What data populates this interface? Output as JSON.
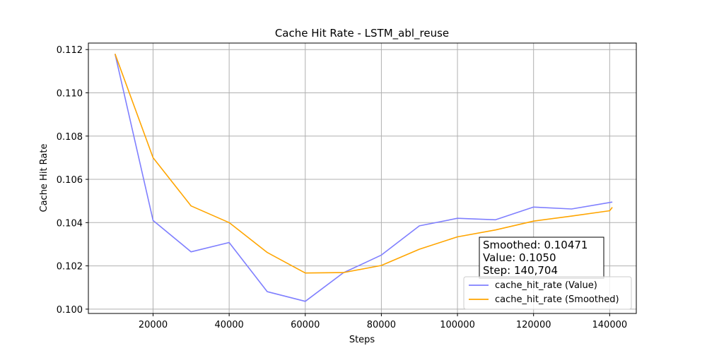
{
  "chart_data": {
    "type": "line",
    "title": "Cache Hit Rate - LSTM_abl_reuse",
    "xlabel": "Steps",
    "ylabel": "Cache Hit Rate",
    "xlim": [
      3000,
      147000
    ],
    "ylim": [
      0.0998,
      0.1123
    ],
    "x_ticks": [
      20000,
      40000,
      60000,
      80000,
      100000,
      120000,
      140000
    ],
    "x_tick_labels": [
      "20000",
      "40000",
      "60000",
      "80000",
      "100000",
      "120000",
      "140000"
    ],
    "y_ticks": [
      0.1,
      0.102,
      0.104,
      0.106,
      0.108,
      0.11,
      0.112
    ],
    "y_tick_labels": [
      "0.100",
      "0.102",
      "0.104",
      "0.106",
      "0.108",
      "0.110",
      "0.112"
    ],
    "grid": true,
    "legend_position": "bottom-right",
    "series": [
      {
        "name": "cache_hit_rate (Value)",
        "color": "#7f7fff",
        "x": [
          10000,
          20000,
          30000,
          40000,
          50000,
          60000,
          70000,
          80000,
          90000,
          100000,
          110000,
          120000,
          130000,
          140704
        ],
        "y": [
          0.1118,
          0.1041,
          0.10265,
          0.10308,
          0.10081,
          0.10036,
          0.10168,
          0.1025,
          0.10385,
          0.1042,
          0.10413,
          0.10472,
          0.10463,
          0.10495
        ]
      },
      {
        "name": "cache_hit_rate (Smoothed)",
        "color": "#ffa500",
        "x": [
          10000,
          20000,
          30000,
          40000,
          50000,
          60000,
          70000,
          80000,
          90000,
          100000,
          110000,
          120000,
          130000,
          140000,
          140704
        ],
        "y": [
          0.1118,
          0.107,
          0.10477,
          0.104,
          0.10262,
          0.10167,
          0.10169,
          0.10202,
          0.10277,
          0.10334,
          0.10366,
          0.10407,
          0.1043,
          0.10455,
          0.10471
        ]
      }
    ],
    "annotation": {
      "lines": [
        "Smoothed: 0.10471",
        "Value: 0.1050",
        "Step: 140,704"
      ]
    }
  }
}
